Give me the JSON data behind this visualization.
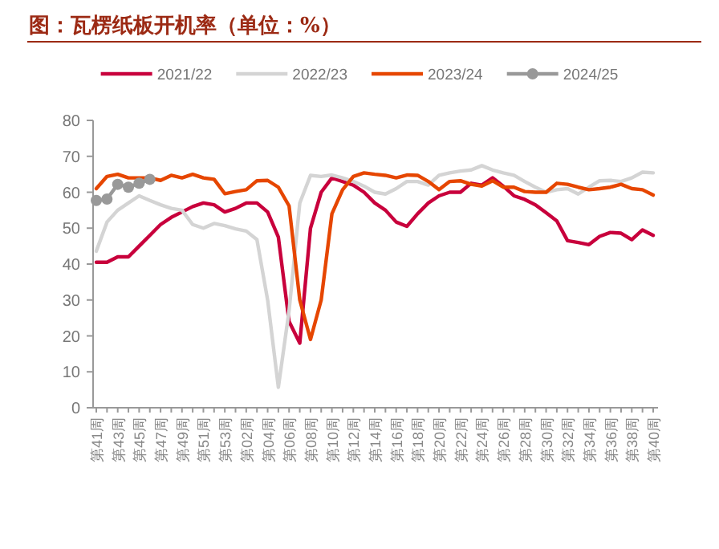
{
  "chart_data": {
    "type": "line",
    "title": "图：瓦楞纸板开机率（单位：%）",
    "categories": [
      "第41周",
      null,
      "第43周",
      null,
      "第45周",
      null,
      "第47周",
      null,
      "第49周",
      null,
      "第51周",
      null,
      "第53周",
      null,
      "第02周",
      null,
      "第04周",
      null,
      "第06周",
      null,
      "第08周",
      null,
      "第10周",
      null,
      "第12周",
      null,
      "第14周",
      null,
      "第16周",
      null,
      "第18周",
      null,
      "第20周",
      null,
      "第22周",
      null,
      "第24周",
      null,
      "第26周",
      null,
      "第28周",
      null,
      "第30周",
      null,
      "第32周",
      null,
      "第34周",
      null,
      "第36周",
      null,
      "第38周",
      null,
      "第40周"
    ],
    "ylim": [
      0,
      80
    ],
    "yticks": [
      0,
      10,
      20,
      30,
      40,
      50,
      60,
      70,
      80
    ],
    "grid": false,
    "legend": "top",
    "line_style": "solid",
    "series": [
      {
        "name": "2021/22",
        "color": "#c8003c",
        "values": [
          40.5,
          40.5,
          42,
          42,
          45,
          48,
          51,
          53,
          54.5,
          56,
          57,
          56.5,
          54.5,
          55.5,
          57,
          57,
          54.5,
          47.5,
          24,
          18,
          50,
          60,
          64,
          63,
          62,
          60,
          57,
          55,
          51.7,
          50.5,
          54,
          57,
          59,
          60,
          60,
          62.5,
          62,
          64,
          61.7,
          59,
          58,
          56.5,
          54.3,
          52,
          46.5,
          46,
          45.4,
          47.7,
          48.8,
          48.6,
          46.8,
          49.5,
          48
        ]
      },
      {
        "name": "2022/23",
        "color": "#d4d4d4",
        "values": [
          43.6,
          51.7,
          55,
          57,
          59,
          57.7,
          56.5,
          55.5,
          55,
          51,
          50,
          51.3,
          50.7,
          49.8,
          49.2,
          46.8,
          30,
          5.7,
          27,
          57,
          64.7,
          64.4,
          64.8,
          64,
          63,
          61.7,
          60,
          59.5,
          61,
          63,
          63,
          62,
          64.7,
          65.4,
          65.9,
          66.2,
          67.4,
          66.2,
          65.4,
          64.7,
          63,
          61.4,
          60,
          60.7,
          61,
          59.5,
          61.4,
          63.2,
          63.3,
          63,
          64,
          65.6,
          65.4
        ]
      },
      {
        "name": "2023/24",
        "color": "#e64600",
        "values": [
          61,
          64.4,
          65,
          64,
          64,
          64,
          63.3,
          64.7,
          64,
          65,
          64,
          63.6,
          59.6,
          60.2,
          60.7,
          63.2,
          63.3,
          61.4,
          56.2,
          30,
          19,
          30,
          54,
          60.7,
          64.4,
          65.4,
          65,
          64.7,
          64,
          64.8,
          64.7,
          63,
          60.7,
          63,
          63.2,
          62.2,
          61.7,
          63.2,
          61.4,
          61.4,
          60.2,
          60,
          60,
          62.5,
          62.2,
          61.4,
          60.7,
          61,
          61.4,
          62.2,
          61,
          60.7,
          59.2
        ]
      },
      {
        "name": "2024/25",
        "color": "#999999",
        "marker": "circle",
        "values": [
          57.7,
          58.1,
          62.2,
          61.4,
          62.5,
          63.6,
          null,
          null,
          null,
          null,
          null,
          null,
          null,
          null,
          null,
          null,
          null,
          null,
          null,
          null,
          null,
          null,
          null,
          null,
          null,
          null,
          null,
          null,
          null,
          null,
          null,
          null,
          null,
          null,
          null,
          null,
          null,
          null,
          null,
          null,
          null,
          null,
          null,
          null,
          null,
          null,
          null,
          null,
          null,
          null,
          null,
          null,
          null
        ]
      }
    ]
  }
}
